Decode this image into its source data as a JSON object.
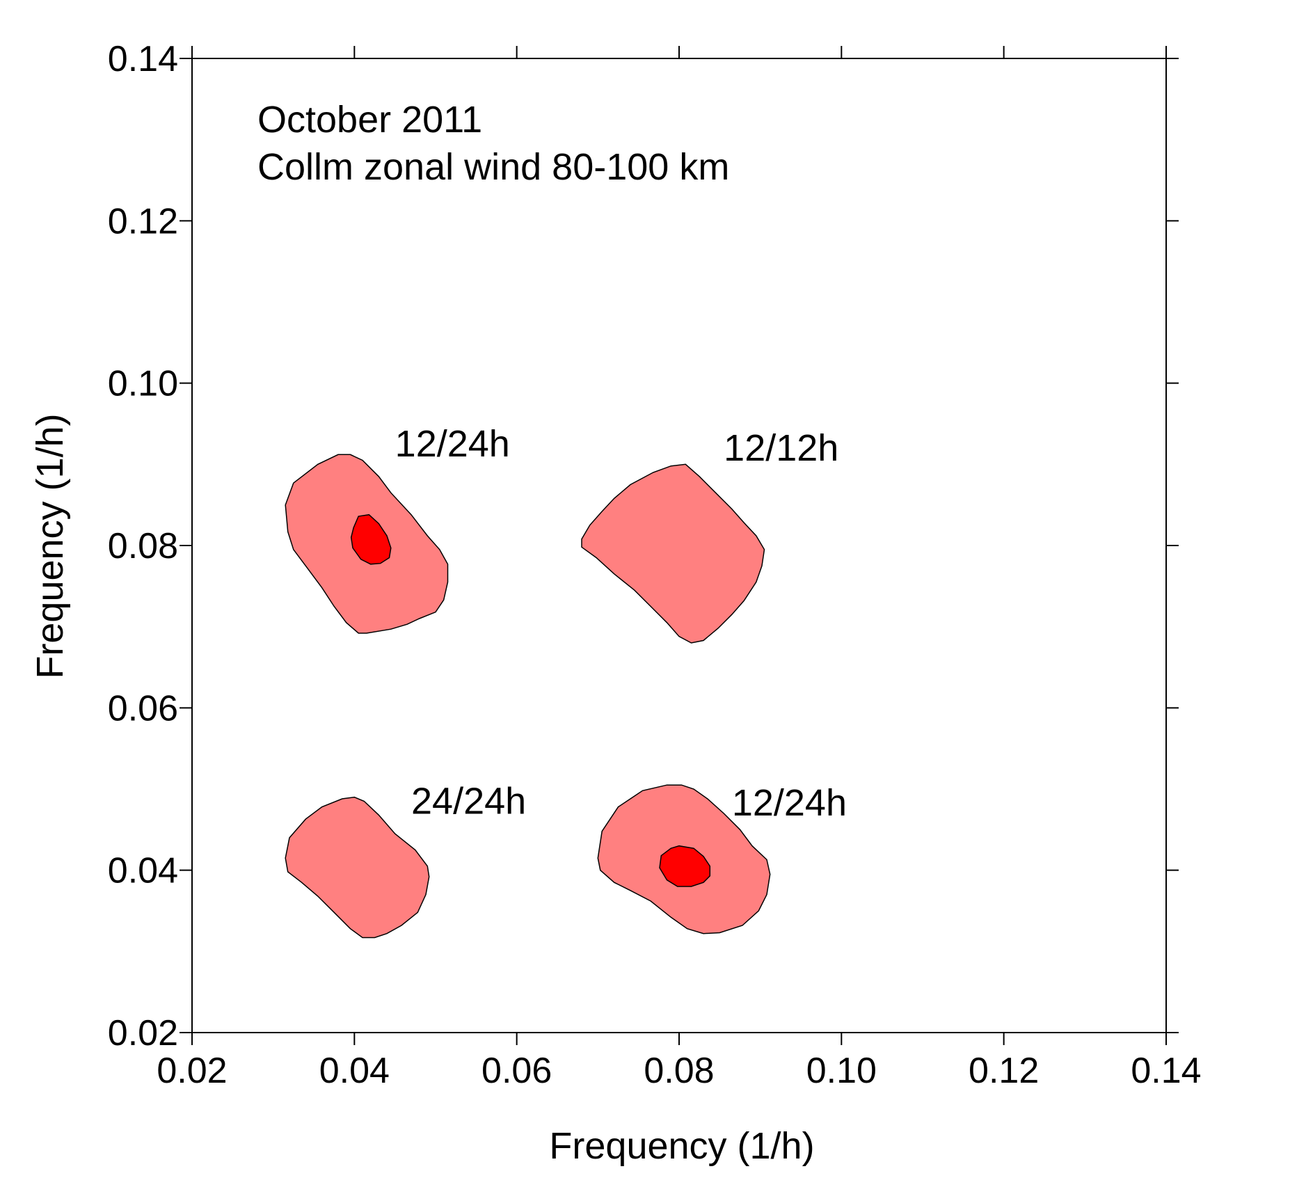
{
  "chart_data": {
    "type": "contour",
    "annotations": [
      "October 2011",
      "Collm zonal wind 80-100 km"
    ],
    "xlabel": "Frequency (1/h)",
    "ylabel": "Frequency (1/h)",
    "xlim": [
      0.02,
      0.14
    ],
    "ylim": [
      0.02,
      0.14
    ],
    "xticks": [
      "0.02",
      "0.04",
      "0.06",
      "0.08",
      "0.10",
      "0.12",
      "0.14"
    ],
    "yticks": [
      "0.02",
      "0.04",
      "0.06",
      "0.08",
      "0.10",
      "0.12",
      "0.14"
    ],
    "grid": false,
    "level_colors": {
      "outer": "#ff8080",
      "inner": "#ff0000"
    },
    "peaks": [
      {
        "label": "12/24h",
        "x": 0.0415,
        "y": 0.0805,
        "label_x": 0.045,
        "label_y": 0.0925,
        "outer": [
          [
            0.0315,
            0.085
          ],
          [
            0.0325,
            0.0877
          ],
          [
            0.0355,
            0.09
          ],
          [
            0.038,
            0.0912
          ],
          [
            0.0395,
            0.0912
          ],
          [
            0.041,
            0.0905
          ],
          [
            0.043,
            0.0885
          ],
          [
            0.0445,
            0.0865
          ],
          [
            0.047,
            0.0838
          ],
          [
            0.049,
            0.0812
          ],
          [
            0.0505,
            0.0795
          ],
          [
            0.0515,
            0.0777
          ],
          [
            0.0515,
            0.0755
          ],
          [
            0.051,
            0.0733
          ],
          [
            0.05,
            0.0718
          ],
          [
            0.048,
            0.071
          ],
          [
            0.0465,
            0.0703
          ],
          [
            0.0445,
            0.0697
          ],
          [
            0.0415,
            0.0692
          ],
          [
            0.0405,
            0.0692
          ],
          [
            0.039,
            0.0705
          ],
          [
            0.0375,
            0.0725
          ],
          [
            0.036,
            0.0748
          ],
          [
            0.034,
            0.0775
          ],
          [
            0.0325,
            0.0795
          ],
          [
            0.0318,
            0.0817
          ]
        ],
        "inner": [
          [
            0.0399,
            0.0822
          ],
          [
            0.0405,
            0.0836
          ],
          [
            0.0418,
            0.0838
          ],
          [
            0.043,
            0.0827
          ],
          [
            0.044,
            0.0812
          ],
          [
            0.0445,
            0.0797
          ],
          [
            0.0443,
            0.0785
          ],
          [
            0.0432,
            0.0778
          ],
          [
            0.042,
            0.0777
          ],
          [
            0.0408,
            0.0783
          ],
          [
            0.0398,
            0.0797
          ],
          [
            0.0396,
            0.081
          ]
        ]
      },
      {
        "label": "12/12h",
        "x": 0.0805,
        "y": 0.0795,
        "label_x": 0.0855,
        "label_y": 0.092,
        "outer": [
          [
            0.068,
            0.0808
          ],
          [
            0.069,
            0.0825
          ],
          [
            0.0705,
            0.0842
          ],
          [
            0.072,
            0.0858
          ],
          [
            0.074,
            0.0875
          ],
          [
            0.0768,
            0.089
          ],
          [
            0.079,
            0.0898
          ],
          [
            0.0808,
            0.09
          ],
          [
            0.0825,
            0.0885
          ],
          [
            0.0845,
            0.0865
          ],
          [
            0.0865,
            0.0845
          ],
          [
            0.088,
            0.0828
          ],
          [
            0.0895,
            0.0812
          ],
          [
            0.0905,
            0.0795
          ],
          [
            0.0902,
            0.0775
          ],
          [
            0.0895,
            0.0755
          ],
          [
            0.088,
            0.0732
          ],
          [
            0.0865,
            0.0715
          ],
          [
            0.0848,
            0.0698
          ],
          [
            0.083,
            0.0683
          ],
          [
            0.0815,
            0.068
          ],
          [
            0.08,
            0.0688
          ],
          [
            0.0785,
            0.0705
          ],
          [
            0.0765,
            0.0725
          ],
          [
            0.0745,
            0.0745
          ],
          [
            0.072,
            0.0765
          ],
          [
            0.0698,
            0.0785
          ],
          [
            0.068,
            0.0798
          ]
        ]
      },
      {
        "label": "24/24h",
        "x": 0.0405,
        "y": 0.0405,
        "label_x": 0.047,
        "label_y": 0.0485,
        "outer": [
          [
            0.0315,
            0.0415
          ],
          [
            0.032,
            0.044
          ],
          [
            0.034,
            0.0463
          ],
          [
            0.036,
            0.0478
          ],
          [
            0.0385,
            0.0488
          ],
          [
            0.04,
            0.049
          ],
          [
            0.0412,
            0.0485
          ],
          [
            0.043,
            0.0468
          ],
          [
            0.045,
            0.0445
          ],
          [
            0.0475,
            0.0425
          ],
          [
            0.049,
            0.0405
          ],
          [
            0.0492,
            0.0392
          ],
          [
            0.0488,
            0.037
          ],
          [
            0.0478,
            0.0348
          ],
          [
            0.0458,
            0.0332
          ],
          [
            0.044,
            0.0322
          ],
          [
            0.0425,
            0.0317
          ],
          [
            0.041,
            0.0317
          ],
          [
            0.0395,
            0.0328
          ],
          [
            0.0375,
            0.0348
          ],
          [
            0.0355,
            0.0368
          ],
          [
            0.0335,
            0.0385
          ],
          [
            0.0318,
            0.0398
          ]
        ]
      },
      {
        "label": "12/24h",
        "x": 0.0805,
        "y": 0.0405,
        "label_x": 0.0865,
        "label_y": 0.0483,
        "outer": [
          [
            0.07,
            0.0415
          ],
          [
            0.0705,
            0.0448
          ],
          [
            0.0725,
            0.0478
          ],
          [
            0.0755,
            0.0498
          ],
          [
            0.0785,
            0.0505
          ],
          [
            0.0803,
            0.0505
          ],
          [
            0.0818,
            0.05
          ],
          [
            0.0835,
            0.0488
          ],
          [
            0.0855,
            0.047
          ],
          [
            0.0875,
            0.045
          ],
          [
            0.089,
            0.043
          ],
          [
            0.0908,
            0.0413
          ],
          [
            0.0912,
            0.0395
          ],
          [
            0.0908,
            0.037
          ],
          [
            0.0898,
            0.035
          ],
          [
            0.0878,
            0.0332
          ],
          [
            0.085,
            0.0323
          ],
          [
            0.083,
            0.0322
          ],
          [
            0.081,
            0.0328
          ],
          [
            0.079,
            0.0342
          ],
          [
            0.0765,
            0.0362
          ],
          [
            0.074,
            0.0375
          ],
          [
            0.072,
            0.0385
          ],
          [
            0.0703,
            0.04
          ]
        ],
        "inner": [
          [
            0.0778,
            0.0418
          ],
          [
            0.079,
            0.0427
          ],
          [
            0.08,
            0.043
          ],
          [
            0.0818,
            0.0427
          ],
          [
            0.083,
            0.0417
          ],
          [
            0.0838,
            0.0405
          ],
          [
            0.0838,
            0.0393
          ],
          [
            0.083,
            0.0385
          ],
          [
            0.0815,
            0.038
          ],
          [
            0.0798,
            0.038
          ],
          [
            0.0785,
            0.0388
          ],
          [
            0.0776,
            0.0403
          ]
        ]
      }
    ]
  }
}
